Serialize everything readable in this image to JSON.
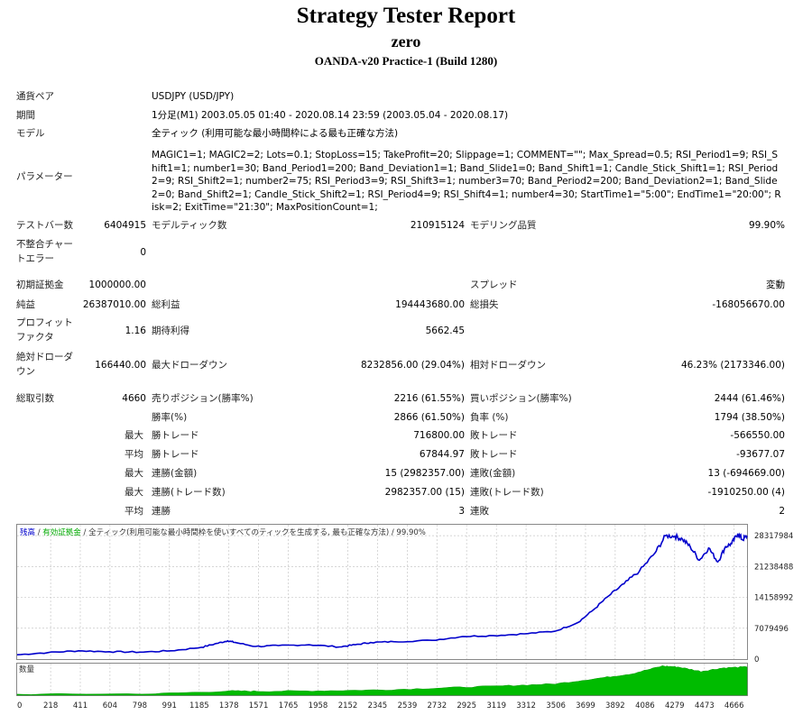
{
  "header": {
    "title": "Strategy Tester Report",
    "ea_name": "zero",
    "server": "OANDA-v20 Practice-1 (Build 1280)"
  },
  "info": {
    "pair_label": "通貨ペア",
    "pair_value": "USDJPY (USD/JPY)",
    "period_label": "期間",
    "period_value": "1分足(M1) 2003.05.05 01:40 - 2020.08.14 23:59 (2003.05.04 - 2020.08.17)",
    "model_label": "モデル",
    "model_value": "全ティック (利用可能な最小時間枠による最も正確な方法)",
    "params_label": "パラメーター",
    "params_value": "MAGIC1=1; MAGIC2=2; Lots=0.1; StopLoss=15; TakeProfit=20; Slippage=1; COMMENT=\"\"; Max_Spread=0.5; RSI_Period1=9; RSI_Shift1=1; number1=30; Band_Period1=200; Band_Deviation1=1; Band_Slide1=0; Band_Shift1=1; Candle_Stick_Shift1=1; RSI_Period2=9; RSI_Shift2=1; number2=75; RSI_Period3=9; RSI_Shift3=1; number3=70; Band_Period2=200; Band_Deviation2=1; Band_Slide2=0; Band_Shift2=1; Candle_Stick_Shift2=1; RSI_Period4=9; RSI_Shift4=1; number4=30; StartTime1=\"5:00\"; EndTime1=\"20:00\"; Risk=2; ExitTime=\"21:30\"; MaxPositionCount=1;"
  },
  "stats": {
    "bars_label": "テストバー数",
    "bars_value": "6404915",
    "ticks_label": "モデルティック数",
    "ticks_value": "210915124",
    "quality_label": "モデリング品質",
    "quality_value": "99.90%",
    "mismatch_label_1": "不整合チャー",
    "mismatch_label_2": "トエラー",
    "mismatch_value": "0",
    "deposit_label": "初期証拠金",
    "deposit_value": "1000000.00",
    "spread_label": "スプレッド",
    "spread_value": "変動",
    "net_label": "純益",
    "net_value": "26387010.00",
    "gross_profit_label": "総利益",
    "gross_profit_value": "194443680.00",
    "gross_loss_label": "総損失",
    "gross_loss_value": "-168056670.00",
    "pf_label_1": "プロフィット",
    "pf_label_2": "ファクタ",
    "pf_value": "1.16",
    "expected_label": "期待利得",
    "expected_value": "5662.45",
    "abs_dd_label_1": "絶対ドローダ",
    "abs_dd_label_2": "ウン",
    "abs_dd_value": "166440.00",
    "max_dd_label": "最大ドローダウン",
    "max_dd_value": "8232856.00 (29.04%)",
    "rel_dd_label": "相対ドローダウン",
    "rel_dd_value": "46.23% (2173346.00)",
    "trades_label": "総取引数",
    "trades_value": "4660",
    "short_label": "売りポジション(勝率%)",
    "short_value": "2216 (61.55%)",
    "long_label": "買いポジション(勝率%)",
    "long_value": "2444 (61.46%)",
    "win_rate_label": "勝率(%)",
    "win_rate_value": "2866 (61.50%)",
    "loss_rate_label": "負率 (%)",
    "loss_rate_value": "1794 (38.50%)",
    "max1": "最大",
    "largest_win_label": "勝トレード",
    "largest_win_value": "716800.00",
    "largest_loss_label": "敗トレード",
    "largest_loss_value": "-566550.00",
    "avg1": "平均",
    "avg_win_label": "勝トレード",
    "avg_win_value": "67844.97",
    "avg_loss_label": "敗トレード",
    "avg_loss_value": "-93677.07",
    "max2": "最大",
    "cons_wins_amt_label": "連勝(金額)",
    "cons_wins_amt_value": "15 (2982357.00)",
    "cons_losses_amt_label": "連敗(金額)",
    "cons_losses_amt_value": "13 (-694669.00)",
    "max3": "最大",
    "cons_profit_label": "連勝(トレード数)",
    "cons_profit_value": "2982357.00 (15)",
    "cons_loss_label": "連敗(トレード数)",
    "cons_loss_value": "-1910250.00 (4)",
    "avg2": "平均",
    "avg_cons_wins_label": "連勝",
    "avg_cons_wins_value": "3",
    "avg_cons_losses_label": "連敗",
    "avg_cons_losses_value": "2"
  },
  "chart_data": {
    "type": "line",
    "legend_balance": "残高",
    "legend_sep": " / ",
    "legend_equity": "有効証拠金",
    "legend_rest": " / 全ティック(利用可能な最小時間枠を使いすべてのティックを生成する, 最も正確な方法) / 99.90%",
    "colors": {
      "balance": "#0000cc",
      "equity": "#00aa00",
      "volume": "#00bb00",
      "grid": "#c8c8c8"
    },
    "y_ticks": [
      "28317984",
      "21238488",
      "14158992",
      "7079496",
      "0"
    ],
    "y_tick_values": [
      28317984,
      21238488,
      14158992,
      7079496,
      0
    ],
    "ylim": [
      0,
      30000000
    ],
    "x_ticks": [
      "0",
      "218",
      "411",
      "604",
      "798",
      "991",
      "1185",
      "1378",
      "1571",
      "1765",
      "1958",
      "2152",
      "2345",
      "2539",
      "2732",
      "2925",
      "3119",
      "3312",
      "3506",
      "3699",
      "3892",
      "4086",
      "4279",
      "4473",
      "4666"
    ],
    "xlim": [
      0,
      4750
    ],
    "volume_label": "数量",
    "balance": [
      [
        0,
        1000000
      ],
      [
        200,
        1500000
      ],
      [
        400,
        1900000
      ],
      [
        600,
        1700000
      ],
      [
        800,
        1600000
      ],
      [
        1000,
        1900000
      ],
      [
        1200,
        2700000
      ],
      [
        1300,
        3600000
      ],
      [
        1370,
        4200000
      ],
      [
        1420,
        3800000
      ],
      [
        1550,
        2900000
      ],
      [
        1700,
        3100000
      ],
      [
        1900,
        3300000
      ],
      [
        2100,
        2800000
      ],
      [
        2200,
        3300000
      ],
      [
        2300,
        3800000
      ],
      [
        2450,
        4000000
      ],
      [
        2700,
        4300000
      ],
      [
        2900,
        5200000
      ],
      [
        3100,
        5400000
      ],
      [
        3300,
        5800000
      ],
      [
        3500,
        6400000
      ],
      [
        3650,
        8400000
      ],
      [
        3750,
        11300000
      ],
      [
        3850,
        14500000
      ],
      [
        3950,
        17300000
      ],
      [
        4050,
        20200000
      ],
      [
        4150,
        24300000
      ],
      [
        4220,
        28300000
      ],
      [
        4280,
        28200000
      ],
      [
        4330,
        27500000
      ],
      [
        4380,
        25800000
      ],
      [
        4440,
        22700000
      ],
      [
        4500,
        25500000
      ],
      [
        4560,
        22300000
      ],
      [
        4610,
        25800000
      ],
      [
        4650,
        26500000
      ],
      [
        4690,
        28800000
      ],
      [
        4720,
        27400000
      ],
      [
        4750,
        28300000
      ]
    ],
    "volume": [
      [
        0,
        0.03
      ],
      [
        900,
        0.05
      ],
      [
        1400,
        0.14
      ],
      [
        1600,
        0.13
      ],
      [
        2000,
        0.15
      ],
      [
        2400,
        0.18
      ],
      [
        2800,
        0.25
      ],
      [
        3200,
        0.32
      ],
      [
        3500,
        0.38
      ],
      [
        3800,
        0.58
      ],
      [
        4000,
        0.72
      ],
      [
        4200,
        0.98
      ],
      [
        4300,
        0.95
      ],
      [
        4450,
        0.8
      ],
      [
        4600,
        0.92
      ],
      [
        4750,
        0.95
      ]
    ]
  }
}
